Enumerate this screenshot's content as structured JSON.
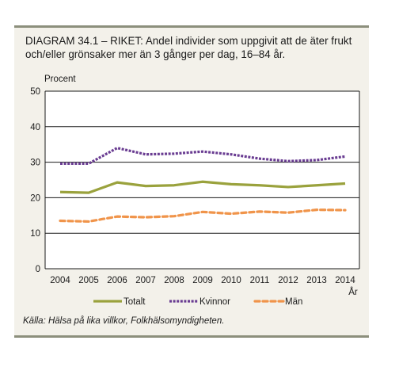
{
  "header": {
    "title": "DIAGRAM 34.1 – RIKET: Andel individer som uppgivit att de äter frukt och/eller grönsaker mer än 3 gånger per dag, 16–84 år."
  },
  "footer": {
    "source": "Källa: Hälsa på lika villkor, Folkhälsomyndigheten."
  },
  "colors": {
    "totalt": "#9aa23d",
    "kvinnor": "#6a3d92",
    "man": "#f0944a",
    "grid": "#1a1a1a",
    "panel_background": "#f3f1ea",
    "plot_background": "#ffffff"
  },
  "chart_data": {
    "type": "line",
    "ylabel": "Procent",
    "xlabel": "År",
    "ylim": [
      0,
      50
    ],
    "yticks": [
      0,
      10,
      20,
      30,
      40,
      50
    ],
    "grid": true,
    "legend_position": "bottom",
    "x": [
      "2004",
      "2005",
      "2006",
      "2007",
      "2008",
      "2009",
      "2010",
      "2011",
      "2012",
      "2013",
      "2014"
    ],
    "series": [
      {
        "name": "Totalt",
        "style": "solid",
        "values": [
          21.6,
          21.4,
          24.3,
          23.3,
          23.5,
          24.5,
          23.8,
          23.5,
          23.0,
          23.5,
          24.0
        ]
      },
      {
        "name": "Kvinnor",
        "style": "dotted-dashed",
        "values": [
          29.6,
          29.6,
          34.0,
          32.2,
          32.4,
          33.0,
          32.2,
          31.0,
          30.3,
          30.6,
          31.6
        ]
      },
      {
        "name": "Män",
        "style": "dashed",
        "values": [
          13.5,
          13.3,
          14.7,
          14.5,
          14.8,
          16.0,
          15.5,
          16.1,
          15.8,
          16.6,
          16.5
        ]
      }
    ]
  }
}
